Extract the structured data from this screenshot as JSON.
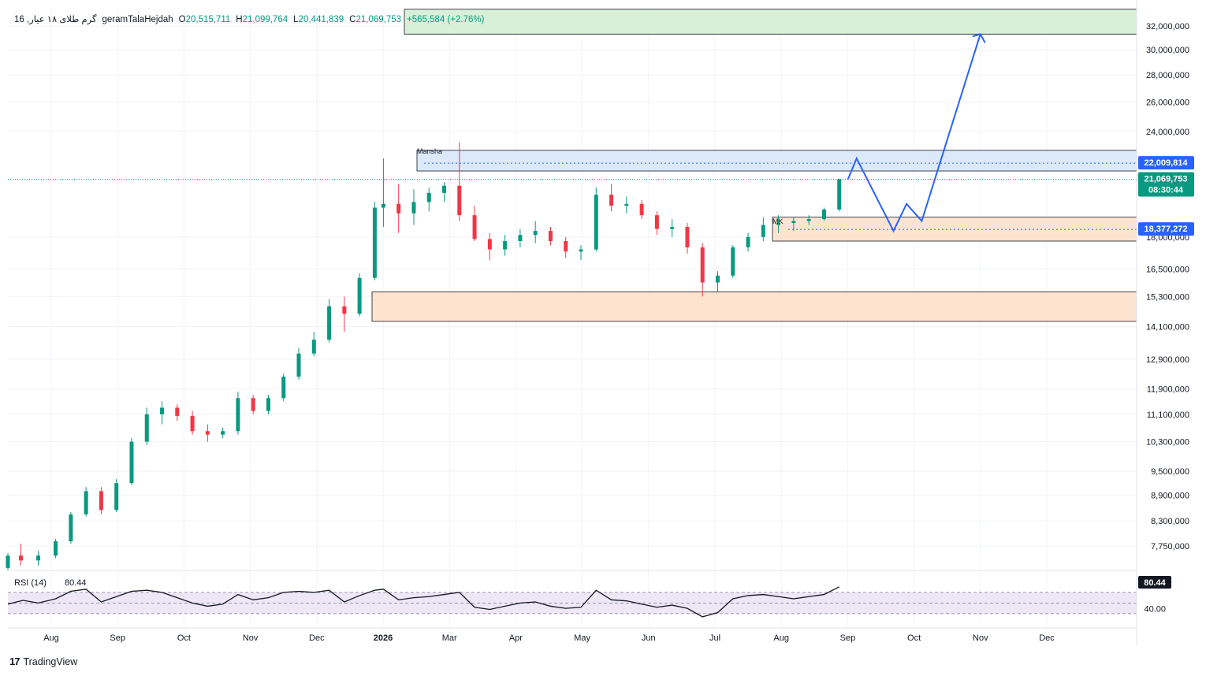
{
  "header": {
    "symbol": "گرم طلای ۱۸ عیار, 16",
    "publisher": "geramTalaHejdah",
    "open_label": "O",
    "open": "20,515,711",
    "high_label": "H",
    "high": "21,099,764",
    "low_label": "L",
    "low": "20,441,839",
    "close_label": "C",
    "close": "21,069,753",
    "change": "+565,584 (+2.76%)"
  },
  "annotations": {
    "mansha_label": "Mansha",
    "mk_label": "MK"
  },
  "price_axis": {
    "ticks": [
      "32,000,000",
      "30,000,000",
      "28,000,000",
      "26,000,000",
      "24,000,000",
      "18,000,000",
      "16,500,000",
      "15,300,000",
      "14,100,000",
      "12,900,000",
      "11,900,000",
      "11,100,000",
      "10,300,000",
      "9,500,000",
      "8,900,000",
      "8,300,000",
      "7,750,000"
    ],
    "tag_resistance": "22,009,814",
    "tag_last": "21,069,753",
    "tag_countdown": "08:30:44",
    "tag_support": "18,377,272"
  },
  "rsi": {
    "label": "RSI (14)",
    "value": "80.44",
    "tag": "80.44",
    "axis_label": "40.00",
    "upper_band": 70,
    "lower_band": 30,
    "mid_line": 50
  },
  "time_axis": {
    "labels": [
      "Aug",
      "Sep",
      "Oct",
      "Nov",
      "Dec",
      "2026",
      "Mar",
      "Apr",
      "May",
      "Jun",
      "Jul",
      "Aug",
      "Sep",
      "Oct",
      "Nov",
      "Dec"
    ]
  },
  "branding": {
    "logo_text": "17",
    "name": "TradingView"
  },
  "colors": {
    "up": "#089981",
    "down": "#f23645",
    "projection": "#2962ff",
    "resistance_zone": "#dbe9fb",
    "demand_zone": "#fde4d0",
    "target_zone": "#d8f0d8",
    "rsi_band": "#ede7f6",
    "tag_blue": "#2962ff",
    "tag_green": "#089981",
    "tag_dark": "#131722"
  },
  "chart_data": {
    "type": "candlestick",
    "title": "گرم طلای ۱۸ عیار, 16",
    "ylabel": "",
    "yscale": "log",
    "ylim": [
      7350000,
      33500000
    ],
    "date_range": [
      "2025-07-29",
      "2026-12-31"
    ],
    "ohlc": [
      {
        "date": "2025-07-29",
        "o": 7300000,
        "h": 7600000,
        "l": 7250000,
        "c": 7550000
      },
      {
        "date": "2025-08-04",
        "o": 7550000,
        "h": 7800000,
        "l": 7350000,
        "c": 7450000
      },
      {
        "date": "2025-08-12",
        "o": 7450000,
        "h": 7650000,
        "l": 7350000,
        "c": 7550000
      },
      {
        "date": "2025-08-20",
        "o": 7550000,
        "h": 7900000,
        "l": 7500000,
        "c": 7850000
      },
      {
        "date": "2025-08-27",
        "o": 7850000,
        "h": 8500000,
        "l": 7800000,
        "c": 8450000
      },
      {
        "date": "2025-09-03",
        "o": 8450000,
        "h": 9100000,
        "l": 8400000,
        "c": 9000000
      },
      {
        "date": "2025-09-10",
        "o": 9000000,
        "h": 9100000,
        "l": 8450000,
        "c": 8550000
      },
      {
        "date": "2025-09-17",
        "o": 8550000,
        "h": 9300000,
        "l": 8500000,
        "c": 9200000
      },
      {
        "date": "2025-09-24",
        "o": 9200000,
        "h": 10400000,
        "l": 9150000,
        "c": 10300000
      },
      {
        "date": "2025-10-01",
        "o": 10300000,
        "h": 11300000,
        "l": 10200000,
        "c": 11100000
      },
      {
        "date": "2025-10-08",
        "o": 11100000,
        "h": 11500000,
        "l": 10800000,
        "c": 11300000
      },
      {
        "date": "2025-10-15",
        "o": 11300000,
        "h": 11400000,
        "l": 10900000,
        "c": 11050000
      },
      {
        "date": "2025-10-22",
        "o": 11050000,
        "h": 11200000,
        "l": 10500000,
        "c": 10600000
      },
      {
        "date": "2025-10-29",
        "o": 10600000,
        "h": 10800000,
        "l": 10300000,
        "c": 10500000
      },
      {
        "date": "2025-11-05",
        "o": 10500000,
        "h": 10700000,
        "l": 10400000,
        "c": 10600000
      },
      {
        "date": "2025-11-12",
        "o": 10600000,
        "h": 11800000,
        "l": 10500000,
        "c": 11600000
      },
      {
        "date": "2025-11-19",
        "o": 11600000,
        "h": 11700000,
        "l": 11100000,
        "c": 11200000
      },
      {
        "date": "2025-11-26",
        "o": 11200000,
        "h": 11700000,
        "l": 11100000,
        "c": 11600000
      },
      {
        "date": "2025-12-03",
        "o": 11600000,
        "h": 12400000,
        "l": 11500000,
        "c": 12300000
      },
      {
        "date": "2025-12-10",
        "o": 12300000,
        "h": 13300000,
        "l": 12200000,
        "c": 13100000
      },
      {
        "date": "2025-12-17",
        "o": 13100000,
        "h": 13900000,
        "l": 13000000,
        "c": 13600000
      },
      {
        "date": "2025-12-24",
        "o": 13600000,
        "h": 15200000,
        "l": 13500000,
        "c": 14900000
      },
      {
        "date": "2025-12-31",
        "o": 14900000,
        "h": 15300000,
        "l": 13900000,
        "c": 14600000
      },
      {
        "date": "2026-01-07",
        "o": 14600000,
        "h": 16300000,
        "l": 14500000,
        "c": 16100000
      },
      {
        "date": "2026-01-14",
        "o": 16100000,
        "h": 19800000,
        "l": 16000000,
        "c": 19500000
      },
      {
        "date": "2026-01-18",
        "o": 19500000,
        "h": 22300000,
        "l": 18500000,
        "c": 19700000
      },
      {
        "date": "2026-01-25",
        "o": 19700000,
        "h": 20800000,
        "l": 18200000,
        "c": 19200000
      },
      {
        "date": "2026-02-01",
        "o": 19200000,
        "h": 20500000,
        "l": 18600000,
        "c": 19800000
      },
      {
        "date": "2026-02-08",
        "o": 19800000,
        "h": 20600000,
        "l": 19300000,
        "c": 20300000
      },
      {
        "date": "2026-02-15",
        "o": 20300000,
        "h": 20900000,
        "l": 19800000,
        "c": 20700000
      },
      {
        "date": "2026-02-22",
        "o": 20700000,
        "h": 23300000,
        "l": 18800000,
        "c": 19100000
      },
      {
        "date": "2026-03-01",
        "o": 19100000,
        "h": 19600000,
        "l": 17800000,
        "c": 17900000
      },
      {
        "date": "2026-03-08",
        "o": 17900000,
        "h": 18200000,
        "l": 16900000,
        "c": 17400000
      },
      {
        "date": "2026-03-15",
        "o": 17400000,
        "h": 18100000,
        "l": 17100000,
        "c": 17800000
      },
      {
        "date": "2026-03-22",
        "o": 17800000,
        "h": 18400000,
        "l": 17500000,
        "c": 18100000
      },
      {
        "date": "2026-03-29",
        "o": 18100000,
        "h": 18800000,
        "l": 17700000,
        "c": 18300000
      },
      {
        "date": "2026-04-05",
        "o": 18300000,
        "h": 18500000,
        "l": 17600000,
        "c": 17800000
      },
      {
        "date": "2026-04-12",
        "o": 17800000,
        "h": 18000000,
        "l": 17000000,
        "c": 17300000
      },
      {
        "date": "2026-04-19",
        "o": 17300000,
        "h": 17600000,
        "l": 16900000,
        "c": 17400000
      },
      {
        "date": "2026-04-26",
        "o": 17400000,
        "h": 20600000,
        "l": 17300000,
        "c": 20200000
      },
      {
        "date": "2026-05-03",
        "o": 20200000,
        "h": 20800000,
        "l": 19300000,
        "c": 19600000
      },
      {
        "date": "2026-05-10",
        "o": 19600000,
        "h": 20100000,
        "l": 19200000,
        "c": 19700000
      },
      {
        "date": "2026-05-17",
        "o": 19700000,
        "h": 19900000,
        "l": 18900000,
        "c": 19100000
      },
      {
        "date": "2026-05-24",
        "o": 19100000,
        "h": 19300000,
        "l": 18100000,
        "c": 18400000
      },
      {
        "date": "2026-05-31",
        "o": 18400000,
        "h": 18900000,
        "l": 18000000,
        "c": 18500000
      },
      {
        "date": "2026-06-07",
        "o": 18500000,
        "h": 18700000,
        "l": 17200000,
        "c": 17500000
      },
      {
        "date": "2026-06-14",
        "o": 17500000,
        "h": 17700000,
        "l": 15300000,
        "c": 15900000
      },
      {
        "date": "2026-06-21",
        "o": 15900000,
        "h": 16400000,
        "l": 15500000,
        "c": 16200000
      },
      {
        "date": "2026-06-28",
        "o": 16200000,
        "h": 17600000,
        "l": 16100000,
        "c": 17500000
      },
      {
        "date": "2026-07-05",
        "o": 17500000,
        "h": 18200000,
        "l": 17300000,
        "c": 18000000
      },
      {
        "date": "2026-07-12",
        "o": 18000000,
        "h": 19000000,
        "l": 17800000,
        "c": 18600000
      },
      {
        "date": "2026-07-19",
        "o": 18600000,
        "h": 19100000,
        "l": 18200000,
        "c": 18700000
      },
      {
        "date": "2026-07-26",
        "o": 18700000,
        "h": 19000000,
        "l": 18300000,
        "c": 18800000
      },
      {
        "date": "2026-08-02",
        "o": 18800000,
        "h": 19100000,
        "l": 18600000,
        "c": 18900000
      },
      {
        "date": "2026-08-09",
        "o": 18900000,
        "h": 19500000,
        "l": 18800000,
        "c": 19400000
      },
      {
        "date": "2026-08-16",
        "o": 19400000,
        "h": 21100000,
        "l": 19300000,
        "c": 21069753
      }
    ],
    "zones": [
      {
        "name": "Mansha",
        "from": "2026-01-18",
        "to": "2026-12-31",
        "low": 21550000,
        "high": 22800000
      },
      {
        "name": "MK",
        "from": "2026-07-12",
        "to": "2026-12-31",
        "low": 17800000,
        "high": 19000000
      },
      {
        "name": "",
        "from": "2025-12-31",
        "to": "2026-12-31",
        "low": 14300000,
        "high": 15500000
      },
      {
        "name": "",
        "from": "2026-01-14",
        "to": "2026-12-31",
        "low": 31300000,
        "high": 33500000
      }
    ],
    "levels": [
      {
        "value": 22009814,
        "style": "dotted",
        "color": "#2962ff"
      },
      {
        "value": 21069753,
        "style": "dotted",
        "color": "#089981"
      },
      {
        "value": 18377272,
        "style": "dotted",
        "color": "#2962ff"
      }
    ],
    "projection": [
      {
        "date": "2026-08-20",
        "value": 21069753
      },
      {
        "date": "2026-08-24",
        "value": 22300000
      },
      {
        "date": "2026-09-10",
        "value": 18300000
      },
      {
        "date": "2026-09-16",
        "value": 19700000
      },
      {
        "date": "2026-09-23",
        "value": 18800000
      },
      {
        "date": "2026-10-20",
        "value": 31300000
      }
    ],
    "rsi_series": [
      {
        "date": "2025-07-29",
        "v": 48
      },
      {
        "date": "2025-08-05",
        "v": 55
      },
      {
        "date": "2025-08-12",
        "v": 50
      },
      {
        "date": "2025-08-20",
        "v": 58
      },
      {
        "date": "2025-08-27",
        "v": 72
      },
      {
        "date": "2025-09-03",
        "v": 76
      },
      {
        "date": "2025-09-10",
        "v": 52
      },
      {
        "date": "2025-09-17",
        "v": 62
      },
      {
        "date": "2025-09-24",
        "v": 72
      },
      {
        "date": "2025-10-01",
        "v": 74
      },
      {
        "date": "2025-10-08",
        "v": 70
      },
      {
        "date": "2025-10-15",
        "v": 60
      },
      {
        "date": "2025-10-22",
        "v": 50
      },
      {
        "date": "2025-10-29",
        "v": 44
      },
      {
        "date": "2025-11-05",
        "v": 48
      },
      {
        "date": "2025-11-12",
        "v": 66
      },
      {
        "date": "2025-11-19",
        "v": 56
      },
      {
        "date": "2025-11-26",
        "v": 60
      },
      {
        "date": "2025-12-03",
        "v": 70
      },
      {
        "date": "2025-12-10",
        "v": 72
      },
      {
        "date": "2025-12-17",
        "v": 70
      },
      {
        "date": "2025-12-24",
        "v": 74
      },
      {
        "date": "2025-12-31",
        "v": 52
      },
      {
        "date": "2026-01-07",
        "v": 64
      },
      {
        "date": "2026-01-14",
        "v": 74
      },
      {
        "date": "2026-01-18",
        "v": 76
      },
      {
        "date": "2026-01-25",
        "v": 56
      },
      {
        "date": "2026-02-01",
        "v": 60
      },
      {
        "date": "2026-02-08",
        "v": 62
      },
      {
        "date": "2026-02-15",
        "v": 66
      },
      {
        "date": "2026-02-22",
        "v": 70
      },
      {
        "date": "2026-03-01",
        "v": 42
      },
      {
        "date": "2026-03-08",
        "v": 38
      },
      {
        "date": "2026-03-15",
        "v": 44
      },
      {
        "date": "2026-03-22",
        "v": 50
      },
      {
        "date": "2026-03-29",
        "v": 52
      },
      {
        "date": "2026-04-05",
        "v": 44
      },
      {
        "date": "2026-04-12",
        "v": 40
      },
      {
        "date": "2026-04-19",
        "v": 42
      },
      {
        "date": "2026-04-26",
        "v": 74
      },
      {
        "date": "2026-05-03",
        "v": 56
      },
      {
        "date": "2026-05-10",
        "v": 54
      },
      {
        "date": "2026-05-17",
        "v": 48
      },
      {
        "date": "2026-05-24",
        "v": 42
      },
      {
        "date": "2026-05-31",
        "v": 46
      },
      {
        "date": "2026-06-07",
        "v": 40
      },
      {
        "date": "2026-06-14",
        "v": 24
      },
      {
        "date": "2026-06-21",
        "v": 32
      },
      {
        "date": "2026-06-28",
        "v": 58
      },
      {
        "date": "2026-07-05",
        "v": 64
      },
      {
        "date": "2026-07-12",
        "v": 66
      },
      {
        "date": "2026-07-19",
        "v": 62
      },
      {
        "date": "2026-07-26",
        "v": 58
      },
      {
        "date": "2026-08-02",
        "v": 62
      },
      {
        "date": "2026-08-09",
        "v": 66
      },
      {
        "date": "2026-08-16",
        "v": 80.44
      }
    ]
  }
}
